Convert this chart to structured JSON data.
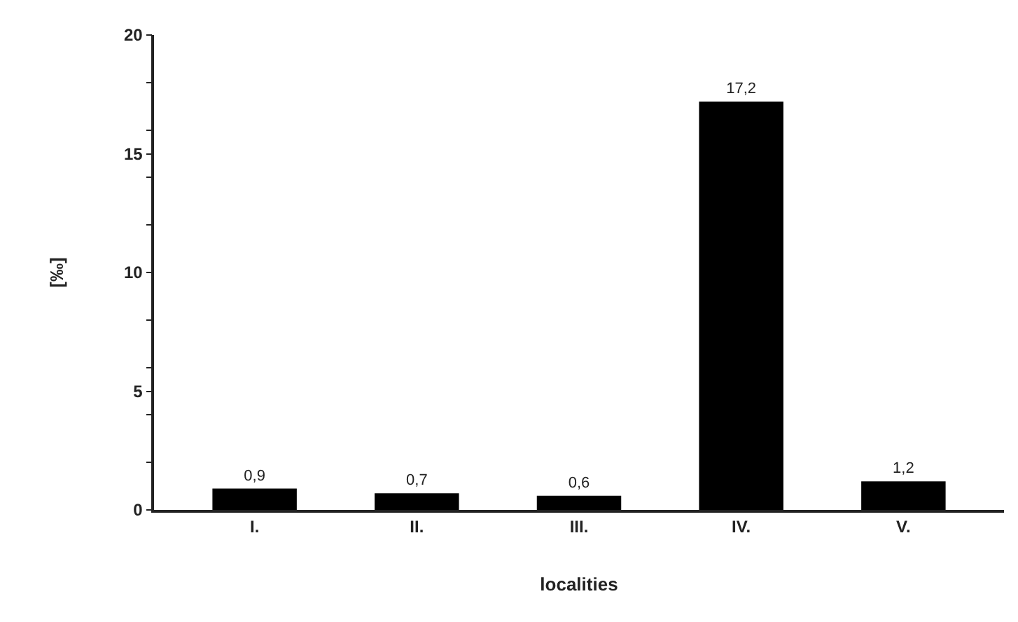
{
  "chart_data": {
    "type": "bar",
    "xlabel": "localities",
    "ylabel": "[‰]",
    "categories": [
      "I.",
      "II.",
      "III.",
      "IV.",
      "V."
    ],
    "values": [
      0.9,
      0.7,
      0.6,
      17.2,
      1.2
    ],
    "value_labels": [
      "0,9",
      "0,7",
      "0,6",
      "17,2",
      "1,2"
    ],
    "color": "#000000",
    "ylim": [
      0,
      20
    ],
    "yticks": [
      0,
      {
        "value": 2,
        "label": null
      },
      {
        "value": 4,
        "label": null
      },
      5,
      {
        "value": 6,
        "label": null
      },
      {
        "value": 8,
        "label": null
      },
      10,
      {
        "value": 12,
        "label": null
      },
      {
        "value": 14,
        "label": null
      },
      15,
      {
        "value": 16,
        "label": null
      },
      {
        "value": 18,
        "label": null
      },
      20
    ]
  }
}
